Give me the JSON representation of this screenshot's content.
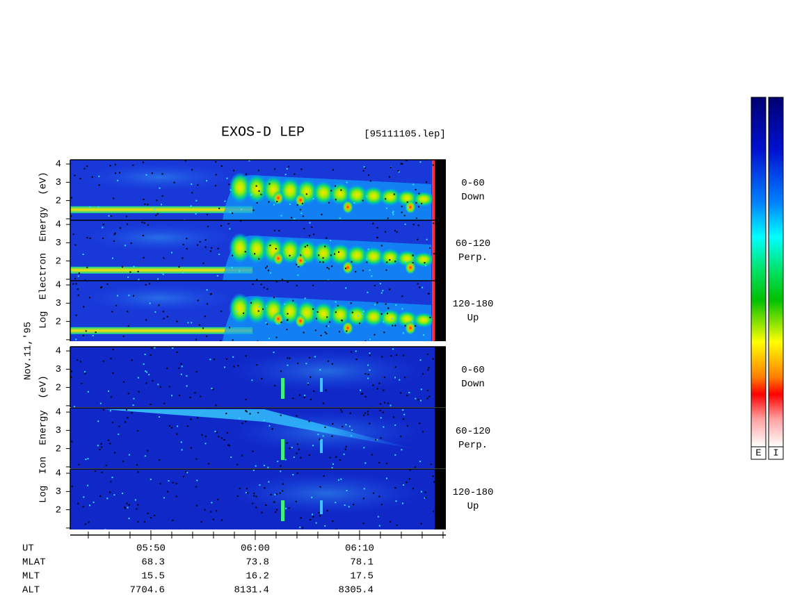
{
  "chart_data": {
    "type": "spectrogram",
    "title": "EXOS-D LEP",
    "file_label": "[95111105.lep]",
    "electron_axis_label": "Log Electron Energy (eV)",
    "ion_axis_label": "Log Ion Energy (eV)",
    "date_label": "Nov.11,'95",
    "ylim": [
      0.92,
      4.23
    ],
    "yticks": [
      2,
      3,
      4
    ],
    "yticks_unlabeled": [
      1
    ],
    "panels": [
      {
        "species": "electron",
        "angle": "0-60",
        "direction": "Down"
      },
      {
        "species": "electron",
        "angle": "60-120",
        "direction": "Perp."
      },
      {
        "species": "electron",
        "angle": "120-180",
        "direction": "Up"
      },
      {
        "species": "ion",
        "angle": "0-60",
        "direction": "Down"
      },
      {
        "species": "ion",
        "angle": "60-120",
        "direction": "Perp."
      },
      {
        "species": "ion",
        "angle": "120-180",
        "direction": "Up"
      }
    ],
    "xlim": [
      42.27,
      78.27
    ],
    "xticks": [
      {
        "value": 50,
        "label": "05:50"
      },
      {
        "value": 60,
        "label": "06:00"
      },
      {
        "value": 70,
        "label": "06:10"
      }
    ],
    "xminor_ticks": [
      44,
      46,
      48,
      52,
      54,
      56,
      58,
      62,
      64,
      66,
      68,
      72,
      74,
      76,
      78
    ],
    "ut_label": "UT",
    "ephemeris": [
      {
        "name": "MLAT",
        "values": [
          "68.3",
          "73.8",
          "78.1"
        ]
      },
      {
        "name": "MLT",
        "values": [
          "15.5",
          "16.2",
          "17.5"
        ]
      },
      {
        "name": "ALT",
        "values": [
          "7704.6",
          "8131.4",
          "8305.4"
        ]
      }
    ],
    "colorbar_labels": [
      "E",
      "I"
    ]
  }
}
